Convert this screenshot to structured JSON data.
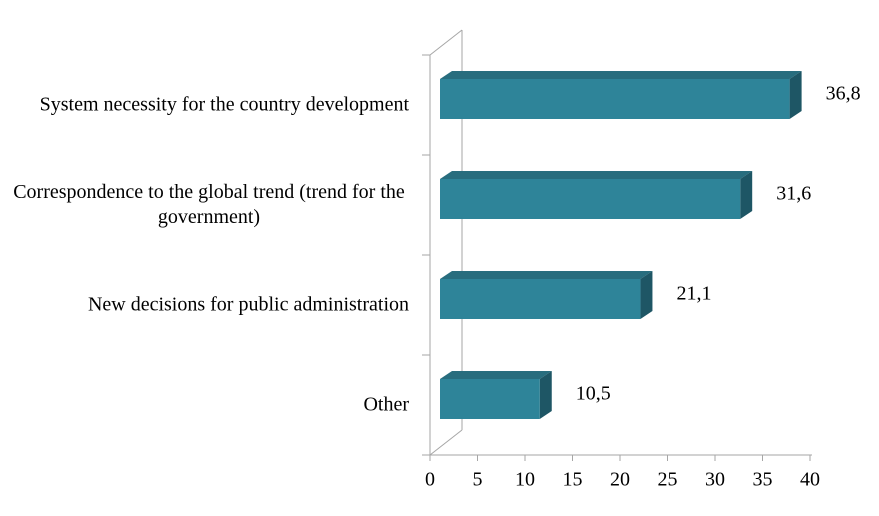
{
  "chart_data": {
    "type": "bar3d_horizontal",
    "categories": [
      "System necessity for the country development",
      "Correspondence to the global trend (trend for the government)",
      "New decisions for public administration",
      "Other"
    ],
    "values": [
      36.8,
      31.6,
      21.1,
      10.5
    ],
    "value_labels": [
      "36,8",
      "31,6",
      "21,1",
      "10,5"
    ],
    "color": "#2e8499",
    "xlim": [
      0,
      40
    ],
    "xticks": [
      0,
      5,
      10,
      15,
      20,
      25,
      30,
      35,
      40
    ]
  }
}
